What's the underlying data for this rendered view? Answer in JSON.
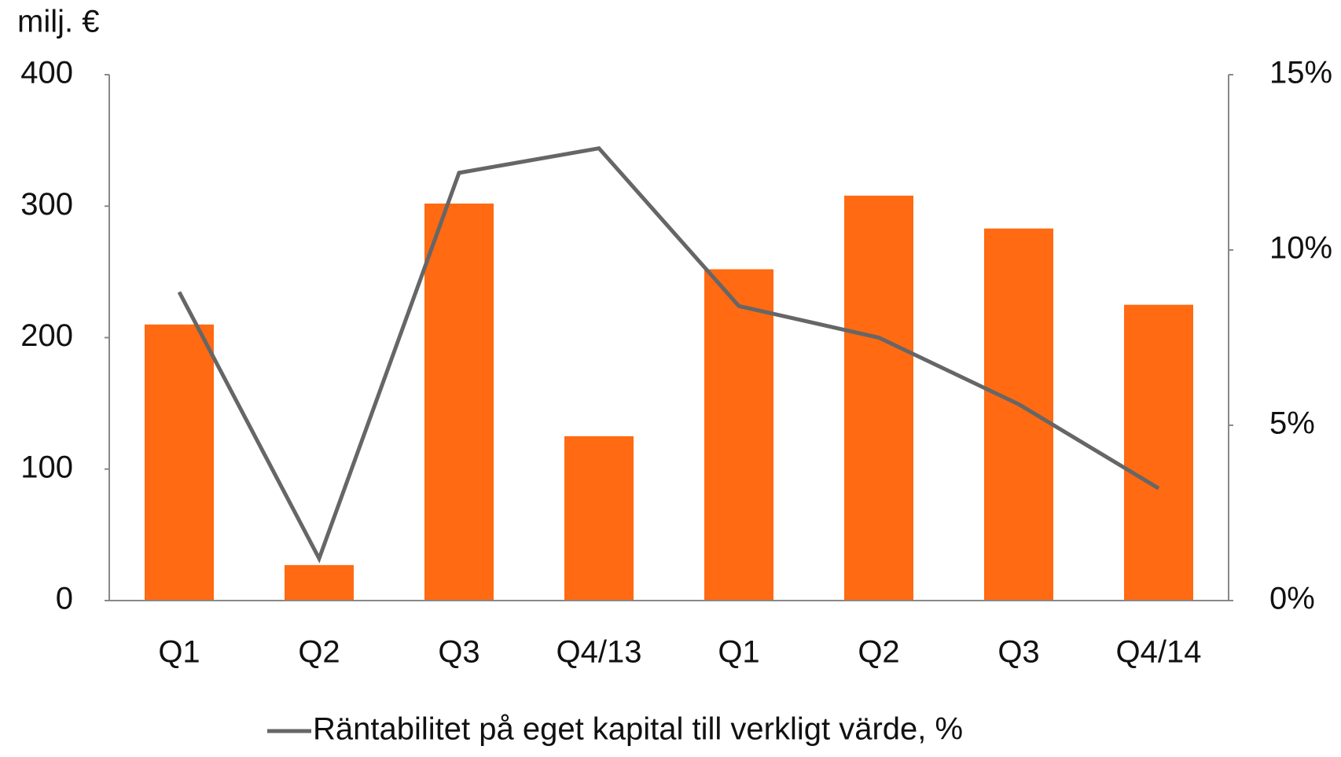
{
  "chart_data": {
    "type": "bar",
    "y_label": "milj. €",
    "categories": [
      "Q1",
      "Q2",
      "Q3",
      "Q4/13",
      "Q1",
      "Q2",
      "Q3",
      "Q4/14"
    ],
    "series": [
      {
        "type": "bar",
        "color": "#ff6a13",
        "values": [
          210,
          27,
          302,
          125,
          252,
          308,
          283,
          225
        ]
      },
      {
        "type": "line",
        "name": "Räntabilitet på eget kapital till verkligt värde, %",
        "color": "#666666",
        "axis": "y2",
        "values": [
          8.8,
          1.2,
          12.2,
          12.9,
          8.4,
          7.5,
          5.6,
          3.2
        ]
      }
    ],
    "ylim": [
      0,
      400
    ],
    "yticks": [
      0,
      100,
      200,
      300,
      400
    ],
    "y2lim": [
      0,
      15
    ],
    "y2ticks": [
      {
        "value": 0,
        "label": "0%"
      },
      {
        "value": 5,
        "label": "5%"
      },
      {
        "value": 10,
        "label": "10%"
      },
      {
        "value": 15,
        "label": "15%"
      }
    ],
    "legend": "bottom"
  }
}
